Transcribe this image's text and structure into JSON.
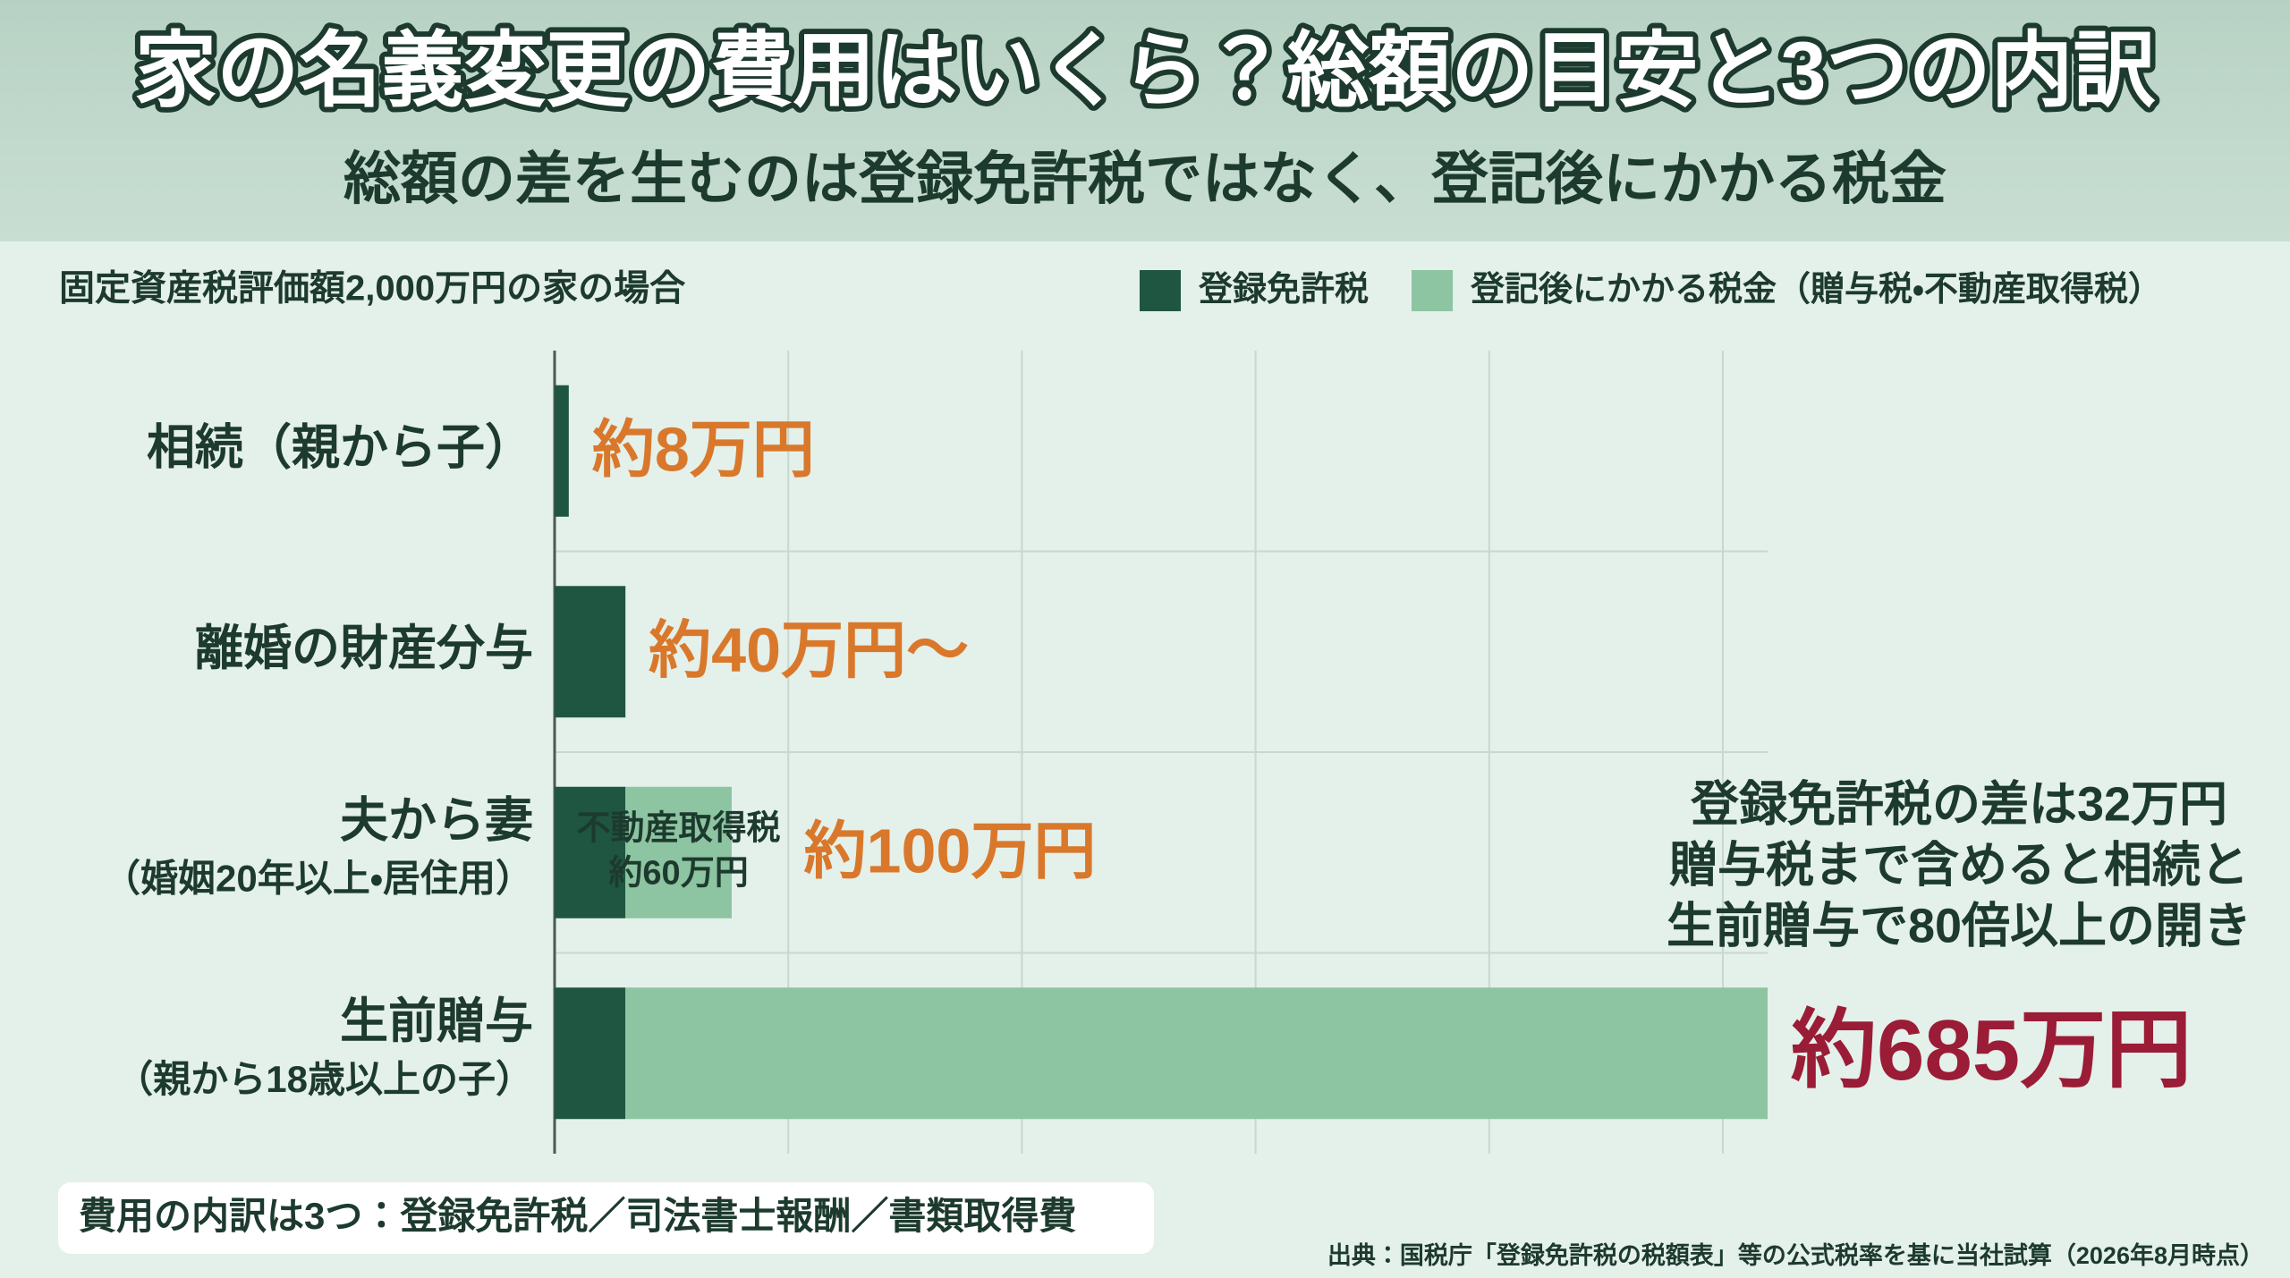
{
  "chart_data": {
    "type": "stacked-barh",
    "title": "家の名義変更の費用はいくら？総額の目安と3つの内訳",
    "subtitle": "総額の差を生むのは登録免許税ではなく、登記後にかかる税金",
    "chart_subtitle": "固定資産税評価額2,000万円の家の場合",
    "categories": [
      "相続（親から子）",
      "離婚の財産分与",
      "夫から妻",
      "生前贈与"
    ],
    "category_notes": [
      null,
      null,
      "（婚姻20年以上・居住用）",
      "（親から18歳以上の子）"
    ],
    "series": [
      {
        "name": "登録免許税",
        "color": "#1f5641",
        "values": [
          8,
          40,
          40,
          40
        ]
      },
      {
        "name": "登記後にかかる税金（贈与税・不動産取得税）",
        "color": "#8dc4a1",
        "values": [
          null,
          null,
          60,
          645
        ],
        "segment_names": [
          null,
          null,
          "不動産取得税",
          null
        ],
        "value_labels": [
          null,
          null,
          "約60万円",
          null
        ]
      }
    ],
    "totals": [
      8,
      40,
      100,
      685
    ],
    "total_labels": [
      "約8万円",
      "約40万円〜",
      "約100万円",
      "約685万円"
    ],
    "xlim": [
      0,
      685
    ],
    "legend": "top-right",
    "annotation": [
      "登録免許税の差は32万円",
      "贈与税まで含めると相続と",
      "生前贈与で80倍以上の開き"
    ],
    "footnote": "費用の内訳は3つ：登録免許税／司法書士報酬／書類取得費",
    "source": "出典：国税庁「登録免許税の税額表」等の公式税率を基に当社試算（2026年8月時点）"
  }
}
